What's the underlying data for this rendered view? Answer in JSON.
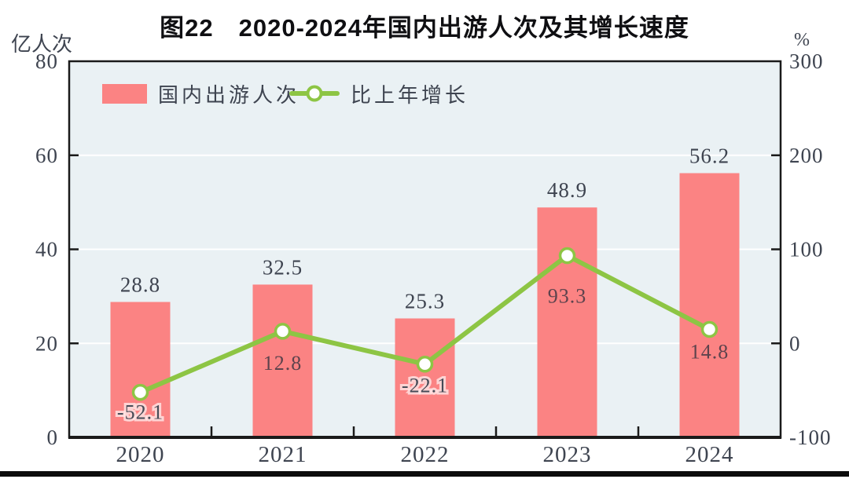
{
  "title": "图22　2020-2024年国内出游人次及其增长速度",
  "chart_data": {
    "type": "bar+line",
    "categories": [
      "2020",
      "2021",
      "2022",
      "2023",
      "2024"
    ],
    "series": [
      {
        "name": "国内出游人次",
        "type": "bar",
        "axis": "left",
        "unit": "亿人次",
        "values": [
          28.8,
          32.5,
          25.3,
          48.9,
          56.2
        ],
        "color": "#fb8383"
      },
      {
        "name": "比上年增长",
        "type": "line",
        "axis": "right",
        "unit": "%",
        "values": [
          -52.1,
          12.8,
          -22.1,
          93.3,
          14.8
        ],
        "color": "#8dc544",
        "marker": "circle-white-fill"
      }
    ],
    "ylabel_left": "亿人次",
    "ylabel_right": "%",
    "y_left": {
      "min": 0,
      "max": 80,
      "ticks": [
        0,
        20,
        40,
        60,
        80
      ]
    },
    "y_right": {
      "min": -100,
      "max": 300,
      "ticks": [
        -100,
        0,
        100,
        200,
        300
      ]
    },
    "grid": true,
    "legend_position": "top-left-inside",
    "plot_bg": "#eaf1f4",
    "grid_color": "#ffffff",
    "axis_color": "#1a1a1a",
    "text_color": "#3e4450"
  }
}
